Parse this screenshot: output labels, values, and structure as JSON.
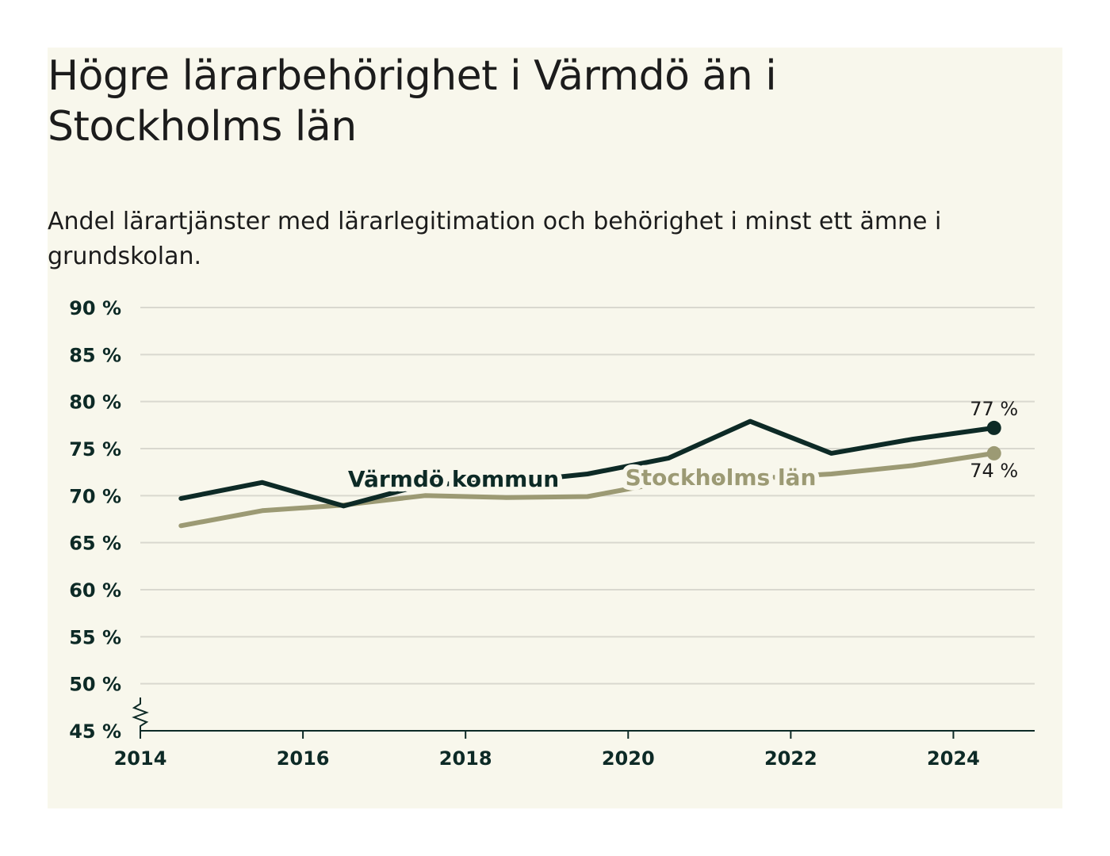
{
  "chart_data": {
    "type": "line",
    "title": "Högre lärarbehörighet i Värmdö än i Stockholms län",
    "subtitle": "Andel lärartjänster med lärarlegitimation och behörighet i minst ett ämne i grundskolan.",
    "x": [
      2014.5,
      2015.5,
      2016.5,
      2017.5,
      2018.5,
      2019.5,
      2020.5,
      2021.5,
      2022.5,
      2023.5,
      2024.5
    ],
    "xlim": [
      2014,
      2025
    ],
    "x_ticks": [
      "2014",
      "2016",
      "2018",
      "2020",
      "2022",
      "2024"
    ],
    "ylim": [
      45,
      90
    ],
    "y_ticks": [
      "45 %",
      "50 %",
      "55 %",
      "60 %",
      "65 %",
      "70 %",
      "75 %",
      "80 %",
      "85 %",
      "90 %"
    ],
    "grid": true,
    "axis_break": true,
    "series": [
      {
        "name": "Värmdö kommun",
        "color": "#0d2a26",
        "values": [
          69.7,
          71.4,
          68.9,
          71.2,
          71.4,
          72.3,
          74.0,
          77.9,
          74.5,
          76.0,
          77.2
        ],
        "end_label": "77 %"
      },
      {
        "name": "Stockholms län",
        "color": "#9c9a74",
        "values": [
          66.8,
          68.4,
          69.0,
          70.0,
          69.8,
          69.9,
          71.5,
          71.8,
          72.3,
          73.2,
          74.5
        ],
        "end_label": "74 %"
      }
    ]
  }
}
